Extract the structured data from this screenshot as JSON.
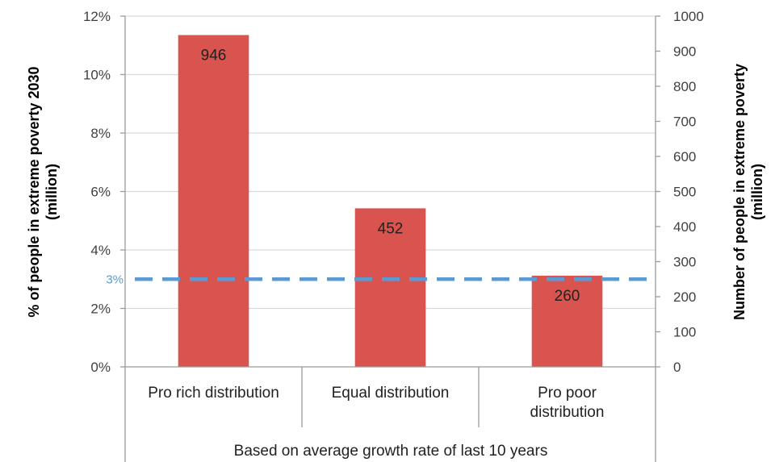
{
  "chart_data": {
    "type": "bar",
    "categories": [
      "Pro rich distribution",
      "Equal distribution",
      "Pro poor distribution"
    ],
    "category_lines": [
      [
        "Pro rich distribution"
      ],
      [
        "Equal distribution"
      ],
      [
        "Pro poor",
        "distribution"
      ]
    ],
    "group_label": "Based on average growth rate of last 10 years",
    "series": [
      {
        "values": [
          946,
          452,
          260
        ],
        "axis": "right",
        "color": "#d9534f"
      }
    ],
    "data_labels": [
      "946",
      "452",
      "260"
    ],
    "reference_line": {
      "value": 3,
      "label": "3%",
      "axis": "left",
      "color": "#5b9bd5",
      "style": "dashed"
    },
    "y_left": {
      "label_lines": [
        "% of people in extreme poverty 2030",
        "(million)"
      ],
      "ylim": [
        0,
        12
      ],
      "ticks": [
        0,
        2,
        4,
        6,
        8,
        10,
        12
      ],
      "tick_labels": [
        "0%",
        "2%",
        "4%",
        "6%",
        "8%",
        "10%",
        "12%"
      ]
    },
    "y_right": {
      "label_lines": [
        "Number of people in extreme poverty",
        "(million)"
      ],
      "ylim": [
        0,
        1000
      ],
      "ticks": [
        0,
        100,
        200,
        300,
        400,
        500,
        600,
        700,
        800,
        900,
        1000
      ],
      "tick_labels": [
        "0",
        "100",
        "200",
        "300",
        "400",
        "500",
        "600",
        "700",
        "800",
        "900",
        "1000"
      ]
    },
    "grid": true,
    "legend": "none"
  }
}
